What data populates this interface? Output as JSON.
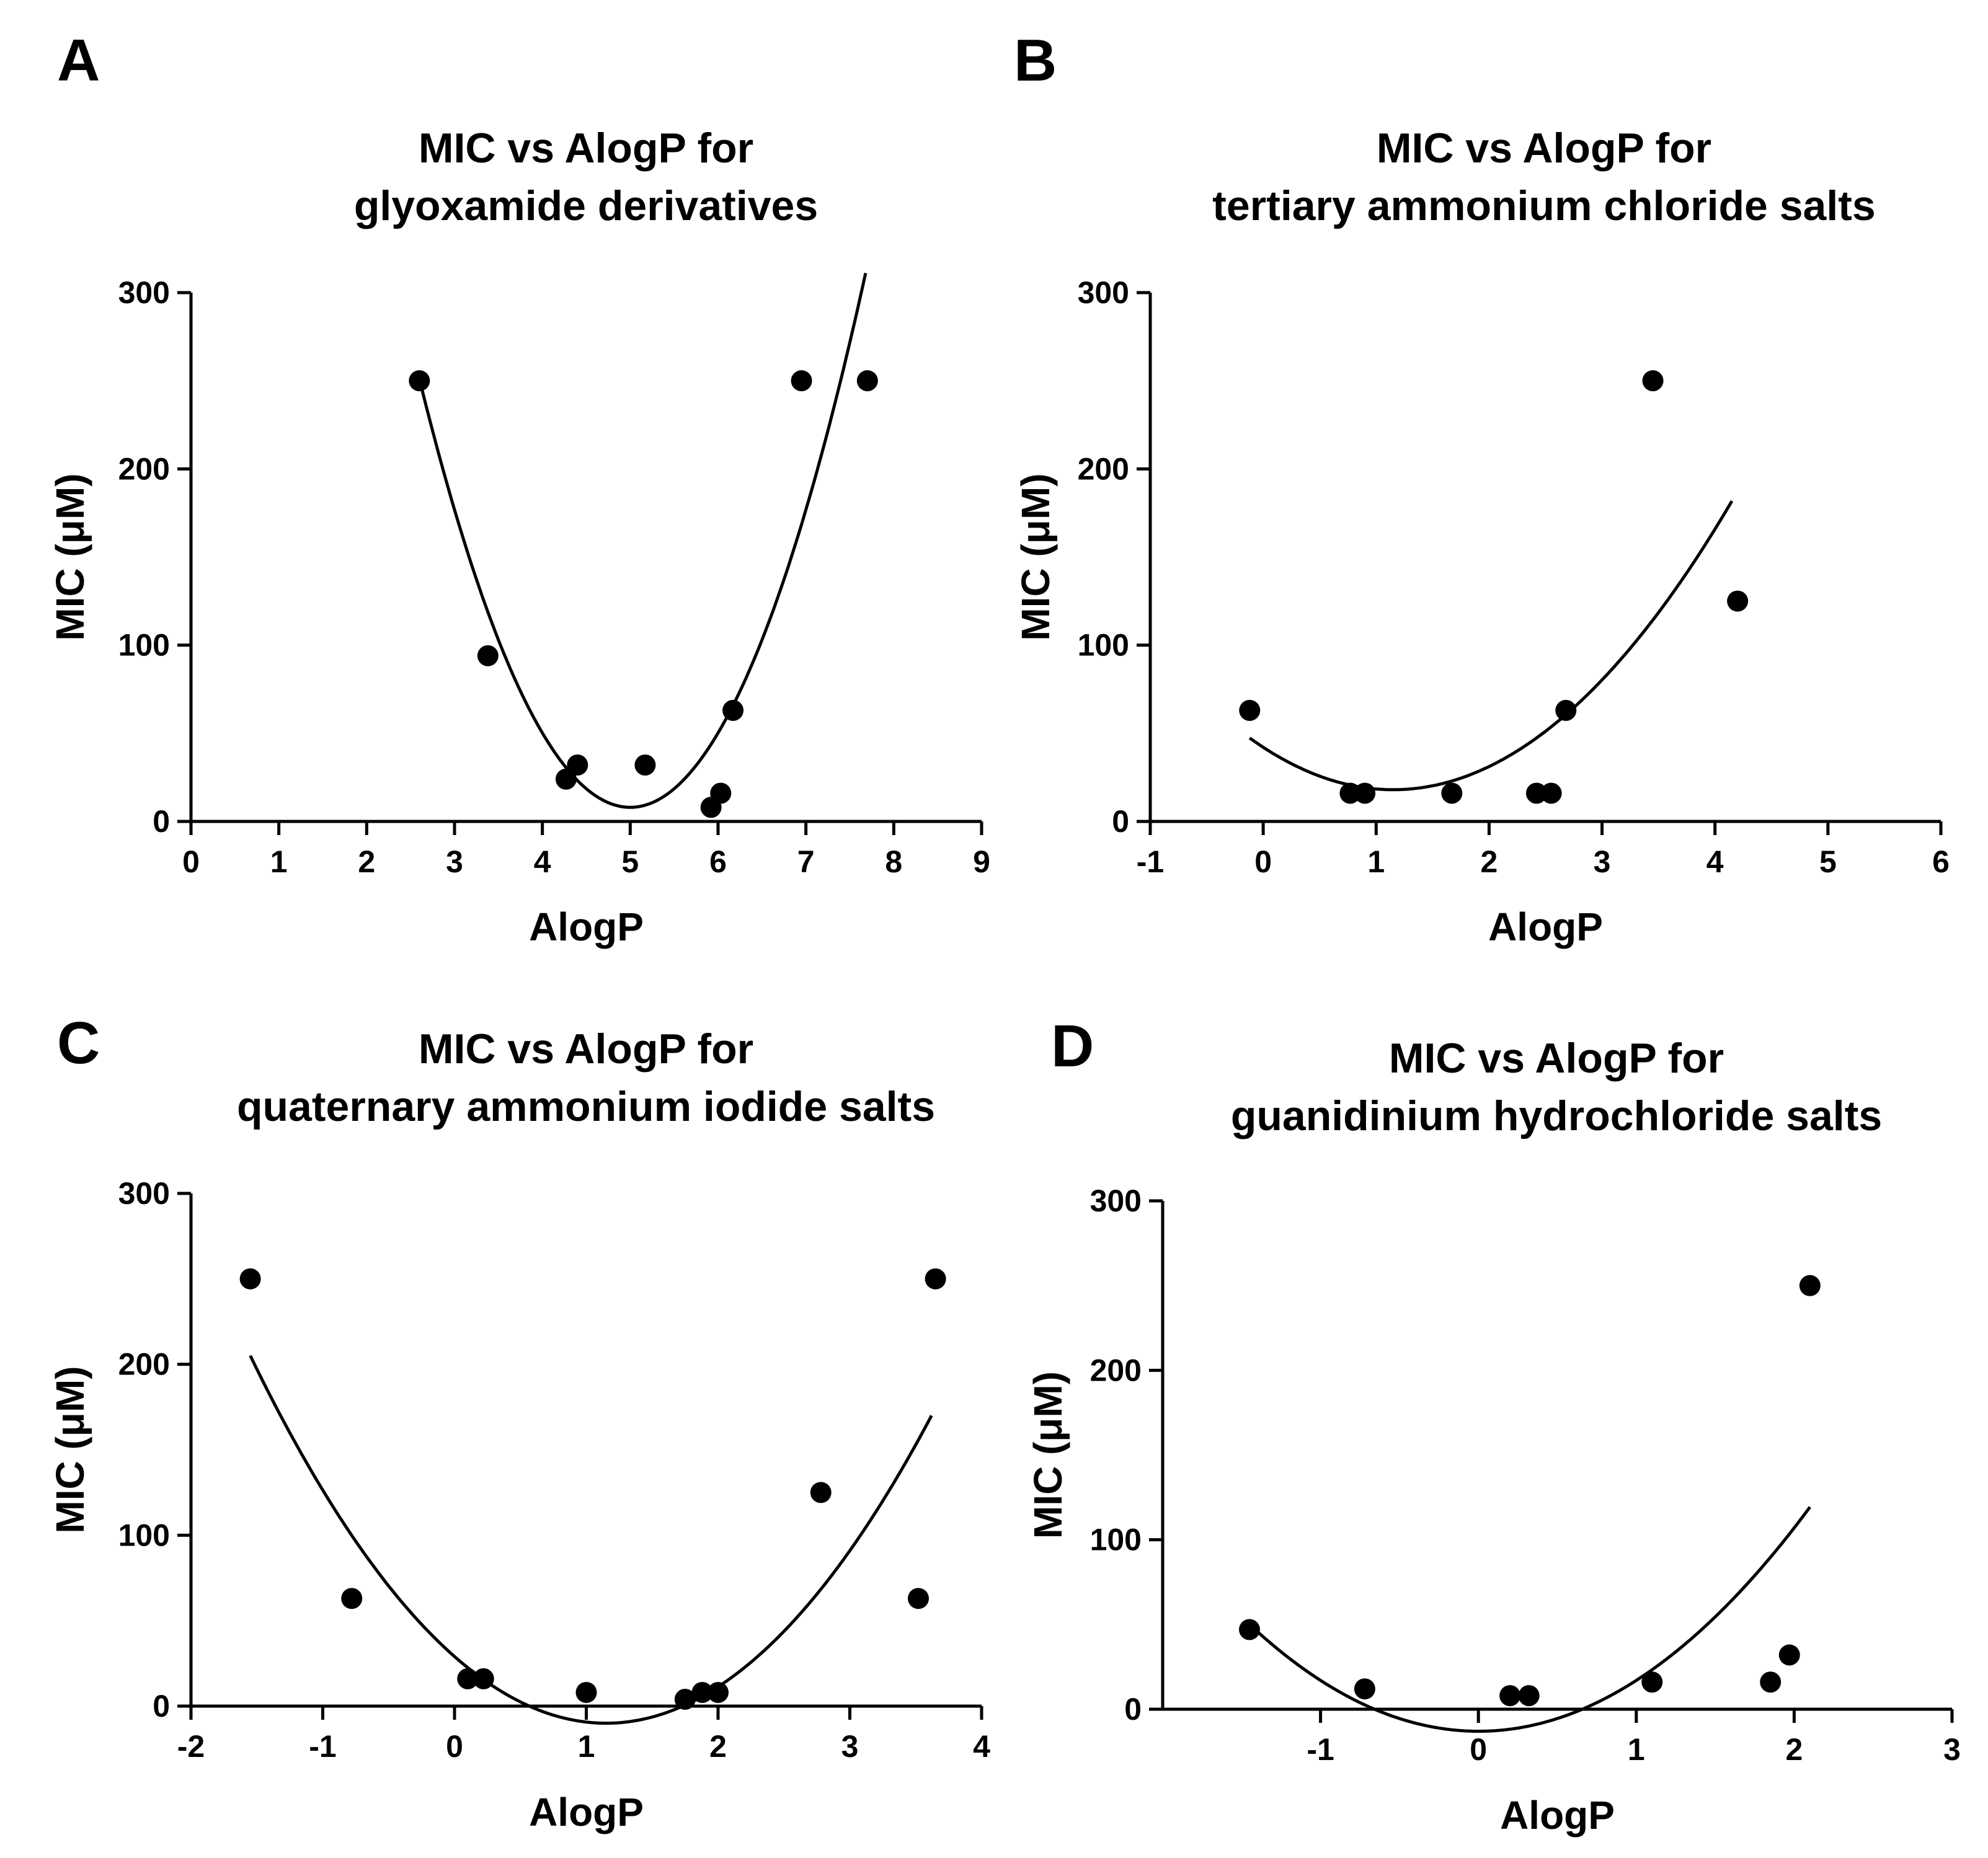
{
  "figure": {
    "panel_letters": [
      "A",
      "B",
      "C",
      "D"
    ]
  },
  "chart_data": [
    {
      "panel": "A",
      "type": "scatter",
      "title": [
        "MIC vs AlogP for",
        "glyoxamide derivatives"
      ],
      "xlabel": "AlogP",
      "ylabel": "MIC (μM)",
      "xlim": [
        0,
        9
      ],
      "ylim": [
        0,
        300
      ],
      "xticks": [
        0,
        1,
        2,
        3,
        4,
        5,
        6,
        7,
        8,
        9
      ],
      "yticks": [
        0,
        100,
        200,
        300
      ],
      "grid": false,
      "points": [
        {
          "x": 2.6,
          "y": 250
        },
        {
          "x": 3.38,
          "y": 94
        },
        {
          "x": 4.27,
          "y": 24
        },
        {
          "x": 4.4,
          "y": 32
        },
        {
          "x": 5.17,
          "y": 32
        },
        {
          "x": 5.92,
          "y": 8
        },
        {
          "x": 6.03,
          "y": 16
        },
        {
          "x": 6.17,
          "y": 63
        },
        {
          "x": 6.95,
          "y": 250
        },
        {
          "x": 7.7,
          "y": 250
        }
      ],
      "fit": {
        "kind": "quadratic",
        "vertex": [
          5.0,
          8
        ],
        "a": 42.2,
        "x_range": [
          2.62,
          7.68
        ]
      }
    },
    {
      "panel": "B",
      "type": "scatter",
      "title": [
        "MIC vs AlogP for",
        "tertiary ammonium chloride salts"
      ],
      "xlabel": "AlogP",
      "ylabel": "MIC (μM)",
      "xlim": [
        -1,
        6
      ],
      "ylim": [
        0,
        300
      ],
      "xticks": [
        -1,
        0,
        1,
        2,
        3,
        4,
        5,
        6
      ],
      "yticks": [
        0,
        100,
        200,
        300
      ],
      "grid": false,
      "points": [
        {
          "x": -0.12,
          "y": 63
        },
        {
          "x": 0.77,
          "y": 16
        },
        {
          "x": 0.9,
          "y": 16
        },
        {
          "x": 1.67,
          "y": 16
        },
        {
          "x": 2.42,
          "y": 16
        },
        {
          "x": 2.55,
          "y": 16
        },
        {
          "x": 2.68,
          "y": 63
        },
        {
          "x": 3.45,
          "y": 250
        },
        {
          "x": 4.2,
          "y": 125
        }
      ],
      "fit": {
        "kind": "quadratic",
        "vertex": [
          1.15,
          18
        ],
        "a": 18.2,
        "x_range": [
          -0.12,
          4.15
        ]
      }
    },
    {
      "panel": "C",
      "type": "scatter",
      "title": [
        "MIC vs AlogP for",
        "quaternary ammonium iodide salts"
      ],
      "xlabel": "AlogP",
      "ylabel": "MIC (μM)",
      "xlim": [
        -2,
        4
      ],
      "ylim": [
        0,
        300
      ],
      "xticks": [
        -2,
        -1,
        0,
        1,
        2,
        3,
        4
      ],
      "yticks": [
        0,
        100,
        200,
        300
      ],
      "grid": false,
      "points": [
        {
          "x": -1.55,
          "y": 250
        },
        {
          "x": -0.78,
          "y": 63
        },
        {
          "x": 0.1,
          "y": 16
        },
        {
          "x": 0.22,
          "y": 16
        },
        {
          "x": 1.0,
          "y": 8
        },
        {
          "x": 1.75,
          "y": 4
        },
        {
          "x": 1.88,
          "y": 8
        },
        {
          "x": 2.0,
          "y": 8
        },
        {
          "x": 2.78,
          "y": 125
        },
        {
          "x": 3.52,
          "y": 63
        },
        {
          "x": 3.65,
          "y": 250
        }
      ],
      "fit": {
        "kind": "quadratic",
        "vertex": [
          1.15,
          -10
        ],
        "a": 29.5,
        "x_range": [
          -1.55,
          3.62
        ]
      }
    },
    {
      "panel": "D",
      "type": "scatter",
      "title": [
        "MIC vs AlogP for",
        "guanidinium hydrochloride salts"
      ],
      "xlabel": "AlogP",
      "ylabel": "MIC (μM)",
      "xlim": [
        -2,
        3
      ],
      "ylim": [
        0,
        300
      ],
      "xticks": [
        -1,
        0,
        1,
        2,
        3
      ],
      "yticks": [
        0,
        100,
        200,
        300
      ],
      "grid": false,
      "points": [
        {
          "x": -1.45,
          "y": 47
        },
        {
          "x": -0.72,
          "y": 12
        },
        {
          "x": 0.2,
          "y": 8
        },
        {
          "x": 0.32,
          "y": 8
        },
        {
          "x": 1.1,
          "y": 16
        },
        {
          "x": 1.85,
          "y": 16
        },
        {
          "x": 1.97,
          "y": 32
        },
        {
          "x": 2.1,
          "y": 250
        }
      ],
      "fit": {
        "kind": "quadratic",
        "vertex": [
          0.0,
          -13
        ],
        "a": 30.0,
        "x_range": [
          -1.45,
          2.1
        ]
      }
    }
  ]
}
